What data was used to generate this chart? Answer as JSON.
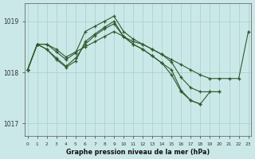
{
  "title": "Graphe pression niveau de la mer (hPa)",
  "background_color": "#cbe8e8",
  "grid_color": "#a8d4d0",
  "line_color": "#2d5a2d",
  "ylim": [
    1016.75,
    1019.35
  ],
  "yticks": [
    1017,
    1018,
    1019
  ],
  "xlim": [
    -0.3,
    23.3
  ],
  "xticks": [
    0,
    1,
    2,
    3,
    4,
    5,
    6,
    7,
    8,
    9,
    10,
    11,
    12,
    13,
    14,
    15,
    16,
    17,
    18,
    19,
    20,
    21,
    22,
    23
  ],
  "series": [
    {
      "x": [
        0,
        1,
        2,
        3,
        4,
        5,
        6,
        7,
        8,
        9,
        10,
        11,
        12,
        13,
        14,
        15,
        16,
        17,
        18,
        19,
        20,
        21,
        22,
        23
      ],
      "y": [
        1018.05,
        1018.55,
        1018.55,
        1018.45,
        1018.3,
        1018.4,
        1018.5,
        1018.6,
        1018.7,
        1018.8,
        1018.7,
        1018.6,
        1018.55,
        1018.45,
        1018.35,
        1018.25,
        1018.15,
        1018.05,
        1017.95,
        1017.88,
        1017.88,
        1017.88,
        1017.88,
        1018.8
      ]
    },
    {
      "x": [
        0,
        1,
        2,
        3,
        4,
        5,
        6,
        7,
        8,
        9,
        10,
        11,
        12,
        13,
        14,
        15,
        16,
        17,
        18,
        19,
        20,
        21,
        22,
        23
      ],
      "y": [
        1018.05,
        1018.55,
        1018.55,
        1018.4,
        1018.25,
        1018.38,
        1018.8,
        1018.9,
        1019.0,
        1019.1,
        1018.8,
        1018.65,
        1018.55,
        1018.45,
        1018.35,
        1018.2,
        1017.9,
        1017.7,
        1017.62,
        1017.62,
        1017.62,
        null,
        null,
        null
      ]
    },
    {
      "x": [
        0,
        1,
        2,
        3,
        4,
        5,
        6,
        7,
        8,
        9,
        10,
        11,
        12,
        13,
        14,
        15,
        16,
        17,
        18,
        19,
        20,
        21,
        22,
        23
      ],
      "y": [
        1018.05,
        1018.55,
        1018.45,
        1018.25,
        1018.1,
        1018.22,
        1018.6,
        1018.75,
        1018.88,
        1019.0,
        1018.7,
        1018.55,
        1018.45,
        1018.32,
        1018.18,
        1017.95,
        1017.62,
        1017.45,
        1017.38,
        null,
        null,
        null,
        null,
        null
      ]
    },
    {
      "x": [
        0,
        1,
        2,
        3,
        4,
        5,
        6,
        7,
        8,
        9,
        10,
        11,
        12,
        13,
        14,
        15,
        16,
        17,
        18,
        19,
        20,
        21,
        22,
        23
      ],
      "y": [
        1018.05,
        1018.55,
        1018.45,
        1018.28,
        1018.12,
        1018.28,
        1018.55,
        1018.72,
        1018.85,
        1018.95,
        1018.7,
        1018.55,
        1018.45,
        1018.32,
        1018.18,
        1018.05,
        1017.65,
        1017.45,
        1017.38,
        1017.62,
        1017.62,
        null,
        null,
        null
      ]
    }
  ]
}
